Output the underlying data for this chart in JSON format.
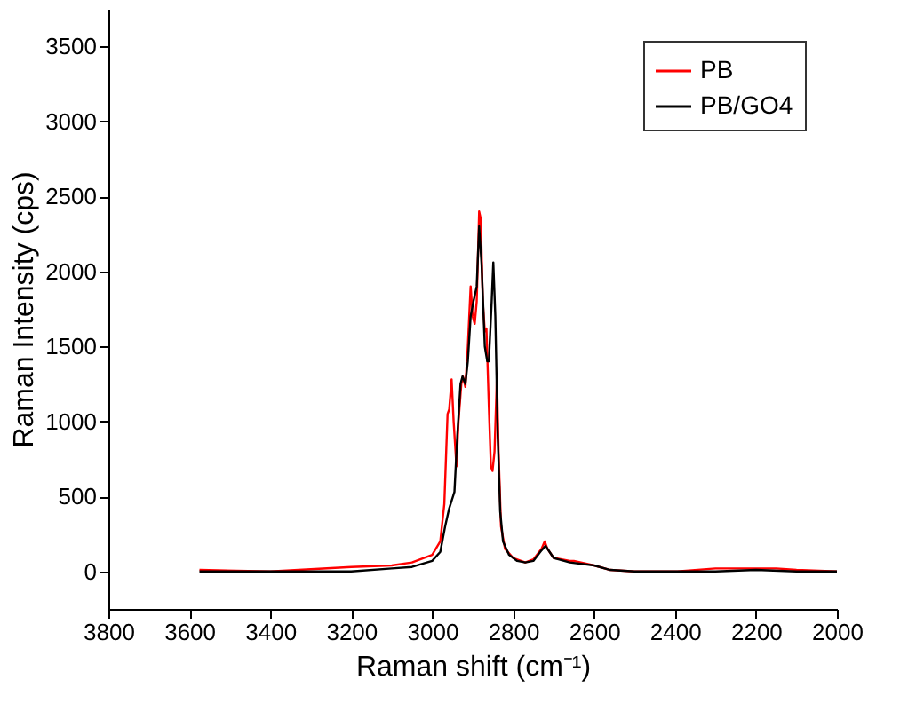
{
  "chart_data": {
    "type": "line",
    "xlabel": "Raman shift (cm⁻¹)",
    "ylabel": "Raman Intensity (cps)",
    "xlim": [
      3800,
      2000
    ],
    "xticks": [
      3800,
      3600,
      3400,
      3200,
      3000,
      2800,
      2600,
      2400,
      2200,
      2000
    ],
    "ylim": [
      -250,
      3750
    ],
    "yticks": [
      0,
      500,
      1000,
      1500,
      2000,
      2500,
      3000,
      3500
    ],
    "grid": false,
    "legend": "top right",
    "marker": "none",
    "line_style": "solid",
    "series": [
      {
        "name": "PB",
        "color": "#ff0000",
        "x": [
          3575,
          3400,
          3200,
          3100,
          3050,
          3000,
          2980,
          2970,
          2962,
          2958,
          2952,
          2947,
          2940,
          2935,
          2928,
          2924,
          2918,
          2912,
          2905,
          2900,
          2895,
          2890,
          2884,
          2880,
          2875,
          2870,
          2866,
          2860,
          2855,
          2851,
          2846,
          2840,
          2836,
          2830,
          2820,
          2800,
          2770,
          2750,
          2730,
          2722,
          2715,
          2700,
          2660,
          2650,
          2600,
          2560,
          2500,
          2400,
          2300,
          2200,
          2150,
          2100,
          2000
        ],
        "values": [
          10,
          0,
          30,
          40,
          60,
          110,
          200,
          450,
          1050,
          1080,
          1280,
          1000,
          700,
          1000,
          1250,
          1300,
          1230,
          1500,
          1900,
          1700,
          1650,
          1800,
          2400,
          2350,
          1800,
          1600,
          1620,
          1100,
          700,
          670,
          800,
          1300,
          800,
          300,
          150,
          90,
          60,
          80,
          150,
          200,
          150,
          90,
          70,
          70,
          40,
          10,
          0,
          0,
          20,
          20,
          20,
          10,
          0
        ]
      },
      {
        "name": "PB/GO4",
        "color": "#000000",
        "x": [
          3575,
          3400,
          3200,
          3100,
          3050,
          3000,
          2980,
          2968,
          2958,
          2945,
          2938,
          2930,
          2925,
          2918,
          2912,
          2905,
          2898,
          2890,
          2884,
          2878,
          2870,
          2864,
          2860,
          2853,
          2849,
          2844,
          2838,
          2832,
          2825,
          2810,
          2790,
          2770,
          2750,
          2730,
          2720,
          2710,
          2700,
          2660,
          2600,
          2560,
          2500,
          2400,
          2300,
          2200,
          2100,
          2000
        ],
        "values": [
          0,
          0,
          0,
          20,
          30,
          70,
          130,
          300,
          420,
          530,
          900,
          1250,
          1300,
          1250,
          1400,
          1700,
          1800,
          1900,
          2300,
          2050,
          1500,
          1400,
          1400,
          1800,
          2060,
          1700,
          900,
          400,
          200,
          110,
          70,
          60,
          70,
          140,
          170,
          130,
          90,
          60,
          40,
          10,
          0,
          0,
          0,
          10,
          0,
          0
        ]
      }
    ]
  }
}
